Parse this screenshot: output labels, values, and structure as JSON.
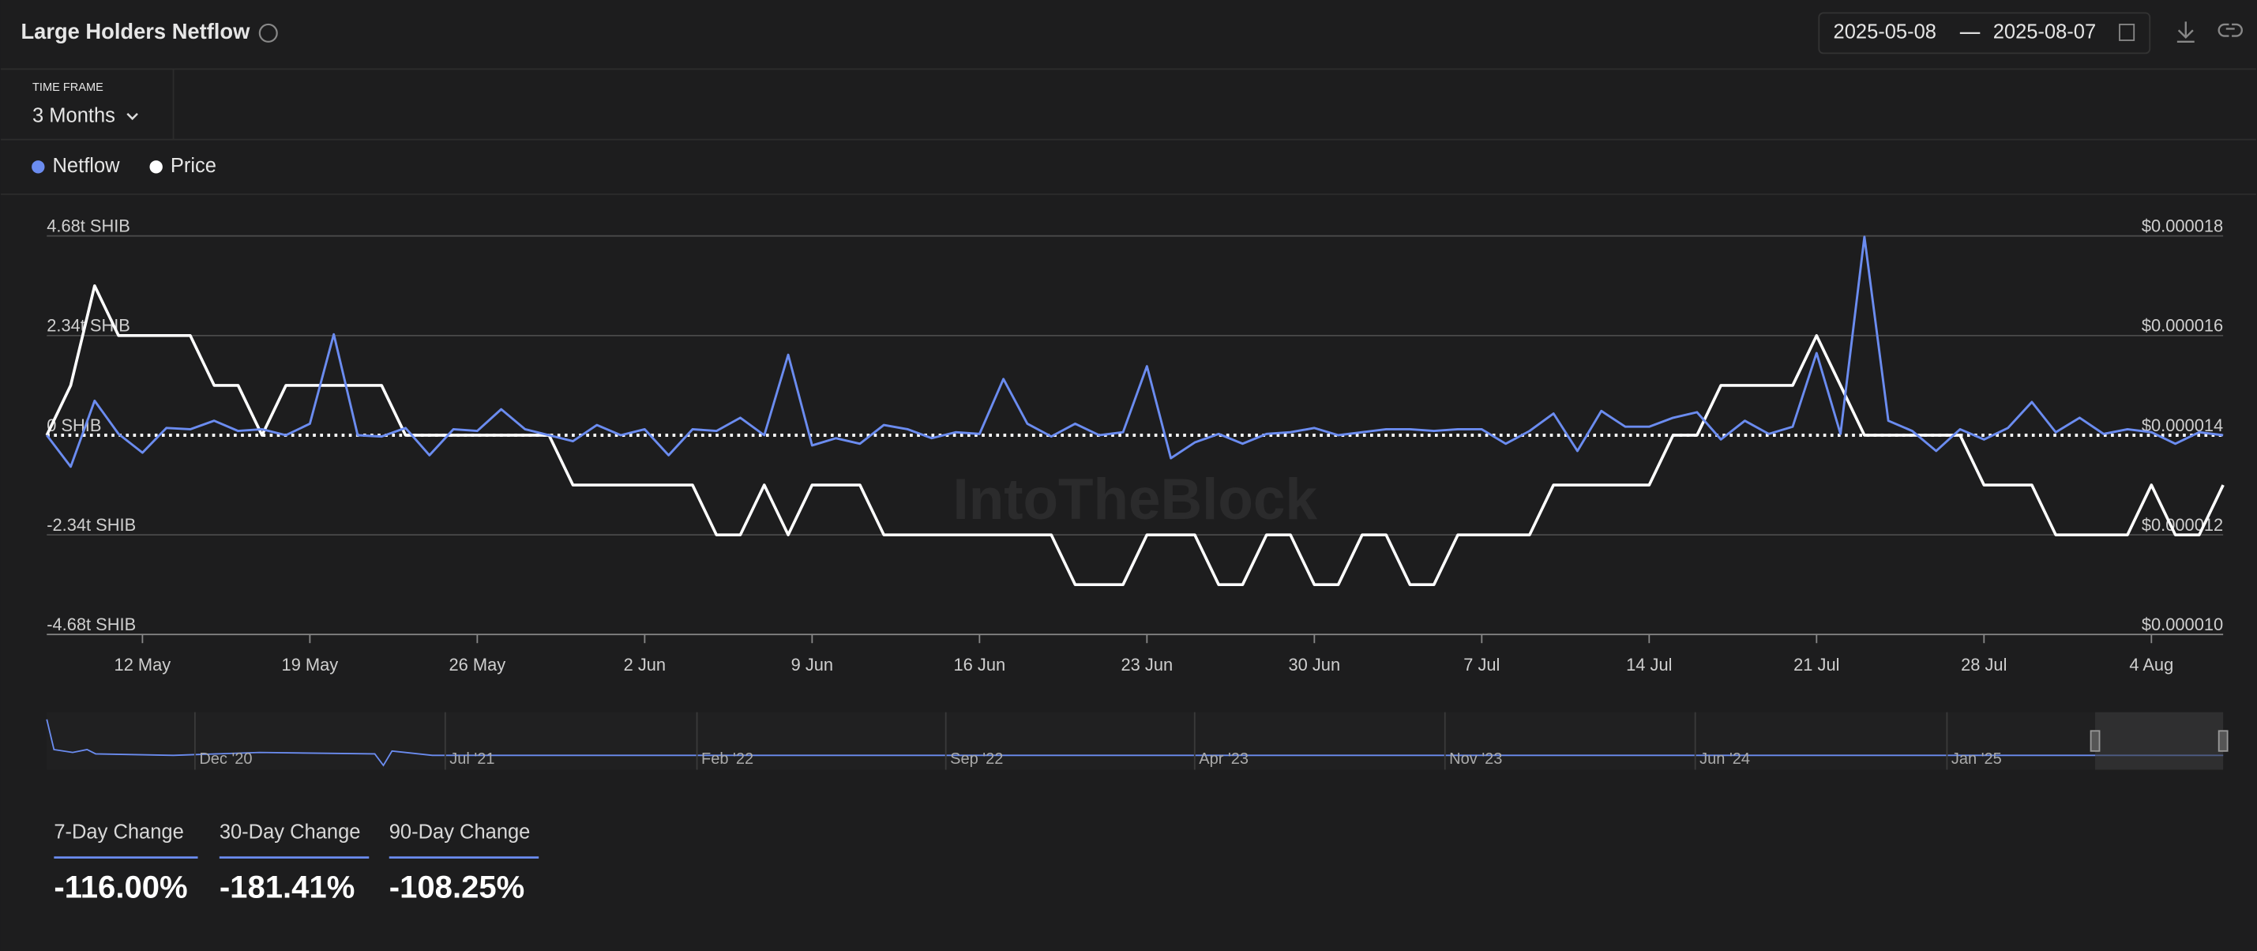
{
  "header": {
    "title": "Large Holders Netflow",
    "date_start": "2025-05-08",
    "date_end": "2025-08-07",
    "time_frame_label": "TIME FRAME",
    "time_frame": "3 Months"
  },
  "chart_data": {
    "type": "line",
    "watermark": "IntoTheBlock",
    "categories": [
      null,
      null,
      null,
      null,
      "12 May",
      null,
      null,
      null,
      null,
      null,
      null,
      "19 May",
      null,
      null,
      null,
      null,
      null,
      null,
      "26 May",
      null,
      null,
      null,
      null,
      null,
      null,
      "2 Jun",
      null,
      null,
      null,
      null,
      null,
      null,
      "9 Jun",
      null,
      null,
      null,
      null,
      null,
      null,
      "16 Jun",
      null,
      null,
      null,
      null,
      null,
      null,
      "23 Jun",
      null,
      null,
      null,
      null,
      null,
      null,
      "30 Jun",
      null,
      null,
      null,
      null,
      null,
      null,
      "7 Jul",
      null,
      null,
      null,
      null,
      null,
      null,
      "14 Jul",
      null,
      null,
      null,
      null,
      null,
      null,
      "21 Jul",
      null,
      null,
      null,
      null,
      null,
      null,
      "28 Jul",
      null,
      null,
      null,
      null,
      null,
      null,
      "4 Aug",
      null,
      null,
      null
    ],
    "series": [
      {
        "name": "Netflow",
        "color": "#6b8cf0",
        "values": [
          0,
          -0.74,
          0.81,
          0.03,
          -0.41,
          0.17,
          0.14,
          0.34,
          0.1,
          0.14,
          0,
          0.27,
          2.37,
          0,
          -0.03,
          0.17,
          -0.47,
          0.14,
          0.1,
          0.61,
          0.14,
          0,
          -0.14,
          0.24,
          0,
          0.14,
          -0.47,
          0.14,
          0.1,
          0.41,
          0,
          1.89,
          -0.24,
          -0.07,
          -0.2,
          0.24,
          0.14,
          -0.07,
          0.07,
          0.03,
          1.32,
          0.27,
          -0.03,
          0.27,
          0,
          0.07,
          1.62,
          -0.54,
          -0.17,
          0.03,
          -0.2,
          0.03,
          0.07,
          0.17,
          0,
          0.07,
          0.14,
          0.14,
          0.1,
          0.14,
          0.14,
          -0.2,
          0.1,
          0.51,
          -0.37,
          0.57,
          0.2,
          0.2,
          0.41,
          0.54,
          -0.1,
          0.34,
          0.03,
          0.2,
          1.93,
          0.03,
          4.66,
          0.34,
          0.1,
          -0.37,
          0.14,
          -0.1,
          0.17,
          0.78,
          0.07,
          0.41,
          0.03,
          0.14,
          0.07,
          -0.2,
          0.07,
          0
        ]
      },
      {
        "name": "Price",
        "color": "#ffffff",
        "axis": "y2",
        "values": [
          1.4e-05,
          1.5e-05,
          1.7e-05,
          1.6e-05,
          1.6e-05,
          1.6e-05,
          1.6e-05,
          1.5e-05,
          1.5e-05,
          1.4e-05,
          1.5e-05,
          1.5e-05,
          1.5e-05,
          1.5e-05,
          1.5e-05,
          1.4e-05,
          1.4e-05,
          1.4e-05,
          1.4e-05,
          1.4e-05,
          1.4e-05,
          1.4e-05,
          1.3e-05,
          1.3e-05,
          1.3e-05,
          1.3e-05,
          1.3e-05,
          1.3e-05,
          1.2e-05,
          1.2e-05,
          1.3e-05,
          1.2e-05,
          1.3e-05,
          1.3e-05,
          1.3e-05,
          1.2e-05,
          1.2e-05,
          1.2e-05,
          1.2e-05,
          1.2e-05,
          1.2e-05,
          1.2e-05,
          1.2e-05,
          1.1e-05,
          1.1e-05,
          1.1e-05,
          1.2e-05,
          1.2e-05,
          1.2e-05,
          1.1e-05,
          1.1e-05,
          1.2e-05,
          1.2e-05,
          1.1e-05,
          1.1e-05,
          1.2e-05,
          1.2e-05,
          1.1e-05,
          1.1e-05,
          1.2e-05,
          1.2e-05,
          1.2e-05,
          1.2e-05,
          1.3e-05,
          1.3e-05,
          1.3e-05,
          1.3e-05,
          1.3e-05,
          1.4e-05,
          1.4e-05,
          1.5e-05,
          1.5e-05,
          1.5e-05,
          1.5e-05,
          1.6e-05,
          1.5e-05,
          1.4e-05,
          1.4e-05,
          1.4e-05,
          1.4e-05,
          1.4e-05,
          1.3e-05,
          1.3e-05,
          1.3e-05,
          1.2e-05,
          1.2e-05,
          1.2e-05,
          1.2e-05,
          1.3e-05,
          1.2e-05,
          1.2e-05,
          1.3e-05
        ]
      }
    ],
    "ylim": [
      -4.68,
      4.68
    ],
    "yticks": [
      {
        "value": -4.68,
        "label": "-4.68t SHIB"
      },
      {
        "value": -2.34,
        "label": "-2.34t SHIB"
      },
      {
        "value": 0,
        "label": "0 SHIB"
      },
      {
        "value": 2.34,
        "label": "2.34t SHIB"
      },
      {
        "value": 4.68,
        "label": "4.68t SHIB"
      }
    ],
    "y2lim": [
      1e-05,
      1.8e-05
    ],
    "y2ticks": [
      {
        "value": 1e-05,
        "label": "$0.000010"
      },
      {
        "value": 1.2e-05,
        "label": "$0.000012"
      },
      {
        "value": 1.4e-05,
        "label": "$0.000014"
      },
      {
        "value": 1.6e-05,
        "label": "$0.000016"
      },
      {
        "value": 1.8e-05,
        "label": "$0.000018"
      }
    ],
    "grid": true,
    "legend": "top-left"
  },
  "navigator": {
    "labels": [
      "Dec '20",
      "Jul '21",
      "Feb '22",
      "Sep '22",
      "Apr '23",
      "Nov '23",
      "Jun '24",
      "Jan '25"
    ]
  },
  "changes": [
    {
      "label": "7-Day Change",
      "value": "-116.00%"
    },
    {
      "label": "30-Day Change",
      "value": "-181.41%"
    },
    {
      "label": "90-Day Change",
      "value": "-108.25%"
    }
  ]
}
